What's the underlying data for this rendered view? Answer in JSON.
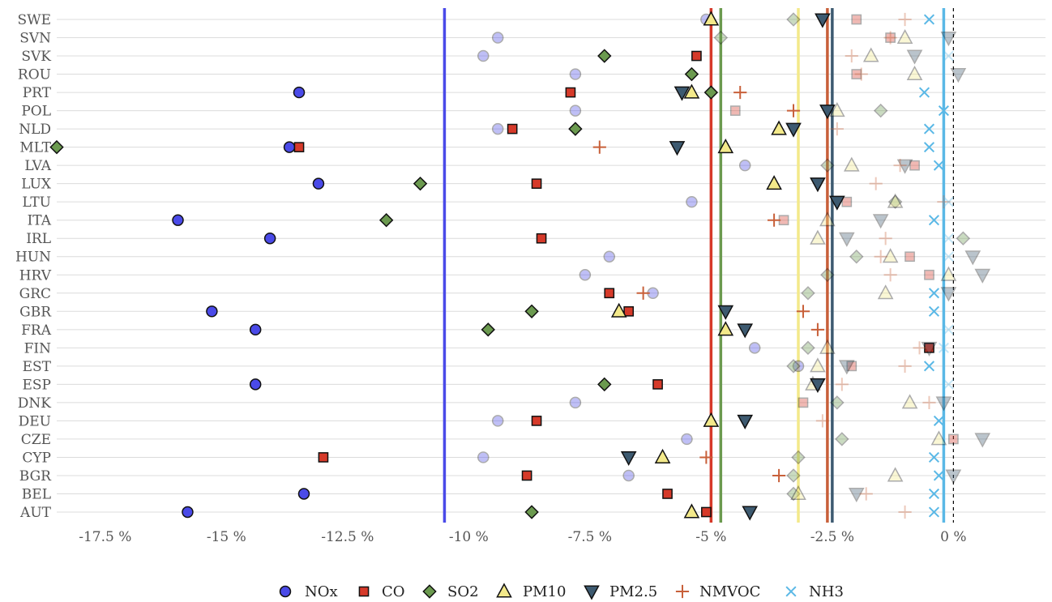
{
  "chart_data": {
    "type": "scatter",
    "title": "",
    "xlabel": "",
    "ylabel": "",
    "xlim": [
      -18.5,
      1.9
    ],
    "x_ticks": [
      -17.5,
      -15,
      -12.5,
      -10,
      -7.5,
      -5,
      -2.5,
      0
    ],
    "x_tick_labels": [
      "-17.5 %",
      "-15 %",
      "-12.5 %",
      "-10 %",
      "-7.5 %",
      "-5 %",
      "-2.5 %",
      "0 %"
    ],
    "categories": [
      "SWE",
      "SVN",
      "SVK",
      "ROU",
      "PRT",
      "POL",
      "NLD",
      "MLT",
      "LVA",
      "LUX",
      "LTU",
      "ITA",
      "IRL",
      "HUN",
      "HRV",
      "GRC",
      "GBR",
      "FRA",
      "FIN",
      "EST",
      "ESP",
      "DNK",
      "DEU",
      "CZE",
      "CYP",
      "BGR",
      "BEL",
      "AUT"
    ],
    "grid": "horizontal",
    "legend_position": "bottom",
    "zero_line": {
      "value": 0,
      "style": "dashed",
      "color": "#000000"
    },
    "series": [
      {
        "name": "NOx",
        "marker": "circle",
        "color": "#4a4ae8",
        "mean": -10.5,
        "values": [
          -5.1,
          -9.4,
          -9.7,
          -7.8,
          -13.5,
          -7.8,
          -9.4,
          -13.7,
          -4.3,
          -13.1,
          -5.4,
          -16.0,
          -14.1,
          -7.1,
          -7.6,
          -6.2,
          -15.3,
          -14.4,
          -4.1,
          -3.2,
          -14.4,
          -7.8,
          -9.4,
          -5.5,
          -9.7,
          -6.7,
          -13.4,
          -15.8
        ],
        "emphasis": [
          0,
          0,
          0,
          0,
          1,
          0,
          0,
          1,
          0,
          1,
          0,
          1,
          1,
          0,
          0,
          0,
          1,
          1,
          0,
          0,
          1,
          0,
          0,
          0,
          0,
          0,
          1,
          1
        ]
      },
      {
        "name": "CO",
        "marker": "square",
        "color": "#d63a2a",
        "mean": -5.0,
        "values": [
          -2.0,
          -1.3,
          -5.3,
          -2.0,
          -7.9,
          -4.5,
          -9.1,
          -13.5,
          -0.8,
          -8.6,
          -2.2,
          -3.5,
          -8.5,
          -0.9,
          -0.5,
          -7.1,
          -6.7,
          null,
          -0.5,
          -2.1,
          -6.1,
          -3.1,
          -8.6,
          0.0,
          -13.0,
          -8.8,
          -5.9,
          -5.1
        ],
        "emphasis": [
          0,
          0,
          1,
          0,
          1,
          0,
          1,
          1,
          0,
          1,
          0,
          0,
          1,
          0,
          0,
          1,
          1,
          0,
          1,
          0,
          1,
          0,
          1,
          0,
          1,
          1,
          1,
          1
        ]
      },
      {
        "name": "SO2",
        "marker": "diamond",
        "color": "#6b9a4f",
        "mean": -4.8,
        "values": [
          -3.3,
          -4.8,
          -7.2,
          -5.4,
          -5.0,
          -1.5,
          -7.8,
          -18.5,
          -2.6,
          -11.0,
          -1.2,
          -11.7,
          0.2,
          -2.0,
          -2.6,
          -3.0,
          -8.7,
          -9.6,
          -3.0,
          -3.3,
          -7.2,
          -2.4,
          null,
          -2.3,
          -3.2,
          -3.3,
          -3.3,
          -8.7
        ],
        "emphasis": [
          0,
          0,
          1,
          1,
          1,
          0,
          1,
          1,
          0,
          1,
          0,
          1,
          0,
          0,
          0,
          0,
          1,
          1,
          0,
          0,
          1,
          0,
          0,
          0,
          0,
          0,
          0,
          1
        ]
      },
      {
        "name": "PM10",
        "marker": "triangle-up",
        "color": "#f3e98a",
        "mean": -3.2,
        "values": [
          -5.0,
          -1.0,
          -1.7,
          -0.8,
          -5.4,
          -2.4,
          -3.6,
          -4.7,
          -2.1,
          -3.7,
          -1.2,
          -2.6,
          -2.8,
          -1.3,
          -0.1,
          -1.4,
          -6.9,
          -4.7,
          -2.6,
          -2.8,
          -2.9,
          -0.9,
          -5.0,
          -0.3,
          -6.0,
          -1.2,
          -3.2,
          -5.4
        ],
        "emphasis": [
          1,
          0,
          0,
          0,
          1,
          0,
          1,
          1,
          0,
          1,
          0,
          0,
          0,
          0,
          0,
          0,
          1,
          1,
          0,
          0,
          0,
          0,
          1,
          0,
          1,
          0,
          0,
          1
        ]
      },
      {
        "name": "PM2.5",
        "marker": "triangle-down",
        "color": "#3d5a70",
        "mean": -2.5,
        "values": [
          -2.7,
          -0.1,
          -0.8,
          0.1,
          -5.6,
          -2.6,
          -3.3,
          -5.7,
          -1.0,
          -2.8,
          -2.4,
          -1.5,
          -2.2,
          0.4,
          0.6,
          -0.1,
          -4.7,
          -4.3,
          -0.5,
          -2.2,
          -2.8,
          -0.2,
          -4.3,
          0.6,
          -6.7,
          0.0,
          -2.0,
          -4.2
        ],
        "emphasis": [
          1,
          0,
          0,
          0,
          1,
          1,
          1,
          1,
          0,
          1,
          1,
          0,
          0,
          0,
          0,
          0,
          1,
          1,
          0,
          0,
          1,
          0,
          1,
          0,
          1,
          0,
          0,
          1
        ]
      },
      {
        "name": "NMVOC",
        "marker": "plus",
        "color": "#c8603a",
        "mean": -2.6,
        "values": [
          -1.0,
          -1.3,
          -2.1,
          -1.9,
          -4.4,
          -3.3,
          -2.4,
          -7.3,
          -1.1,
          -1.6,
          -0.2,
          -3.7,
          -1.4,
          -1.5,
          -1.3,
          -6.4,
          -3.1,
          -2.8,
          -0.7,
          -1.0,
          -2.3,
          -0.5,
          -2.7,
          null,
          -5.1,
          -3.6,
          -1.8,
          -1.0
        ],
        "emphasis": [
          0,
          0,
          0,
          0,
          1,
          1,
          0,
          1,
          0,
          0,
          0,
          1,
          0,
          0,
          0,
          1,
          1,
          1,
          0,
          0,
          0,
          0,
          0,
          0,
          1,
          1,
          0,
          0
        ]
      },
      {
        "name": "NH3",
        "marker": "x",
        "color": "#5ab8e6",
        "mean": -0.2,
        "values": [
          -0.5,
          null,
          -0.1,
          null,
          -0.6,
          -0.2,
          -0.5,
          -0.5,
          -0.3,
          null,
          -0.1,
          -0.4,
          -0.1,
          -0.1,
          null,
          -0.4,
          -0.4,
          -0.1,
          -0.2,
          -0.5,
          -0.1,
          null,
          -0.3,
          null,
          -0.4,
          -0.3,
          -0.4,
          -0.4
        ],
        "emphasis": [
          1,
          0,
          0,
          0,
          1,
          1,
          1,
          1,
          1,
          0,
          0,
          1,
          0,
          0,
          0,
          1,
          1,
          0,
          0,
          1,
          0,
          0,
          1,
          0,
          1,
          1,
          1,
          1
        ]
      }
    ]
  }
}
